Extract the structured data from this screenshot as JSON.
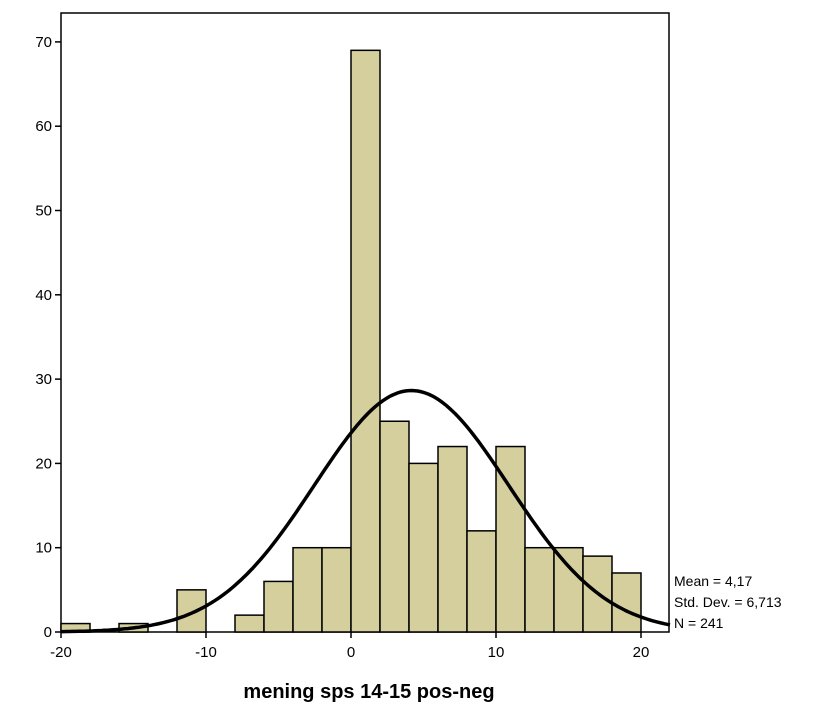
{
  "chart_data": {
    "type": "bar",
    "subtype": "histogram",
    "xlabel": "mening sps 14-15 pos-neg",
    "ylabel": "",
    "xlim": [
      -20,
      22
    ],
    "ylim": [
      0,
      75
    ],
    "x_ticks": [
      "-20",
      "-10",
      "0",
      "10",
      "20"
    ],
    "y_ticks": [
      "0",
      "10",
      "20",
      "30",
      "40",
      "50",
      "60",
      "70"
    ],
    "bin_width": 2,
    "bins": [
      {
        "start": -20,
        "end": -18,
        "count": 1
      },
      {
        "start": -18,
        "end": -16,
        "count": 0
      },
      {
        "start": -16,
        "end": -14,
        "count": 1
      },
      {
        "start": -14,
        "end": -12,
        "count": 0
      },
      {
        "start": -12,
        "end": -10,
        "count": 5
      },
      {
        "start": -10,
        "end": -8,
        "count": 0
      },
      {
        "start": -8,
        "end": -6,
        "count": 2
      },
      {
        "start": -6,
        "end": -4,
        "count": 6
      },
      {
        "start": -4,
        "end": -2,
        "count": 10
      },
      {
        "start": -2,
        "end": 0,
        "count": 10
      },
      {
        "start": 0,
        "end": 2,
        "count": 69
      },
      {
        "start": 2,
        "end": 4,
        "count": 25
      },
      {
        "start": 4,
        "end": 6,
        "count": 20
      },
      {
        "start": 6,
        "end": 8,
        "count": 22
      },
      {
        "start": 8,
        "end": 10,
        "count": 12
      },
      {
        "start": 10,
        "end": 12,
        "count": 22
      },
      {
        "start": 12,
        "end": 14,
        "count": 10
      },
      {
        "start": 14,
        "end": 16,
        "count": 10
      },
      {
        "start": 16,
        "end": 18,
        "count": 9
      },
      {
        "start": 18,
        "end": 20,
        "count": 7
      }
    ],
    "normal_curve": {
      "mean": 4.17,
      "std_dev": 6.713,
      "n": 241
    },
    "stats_text": [
      "Mean = 4,17",
      "Std. Dev. = 6,713",
      "N = 241"
    ],
    "bar_color": "#d5cf9e",
    "bar_stroke": "#000000",
    "curve_color": "#000000",
    "grid": false
  }
}
